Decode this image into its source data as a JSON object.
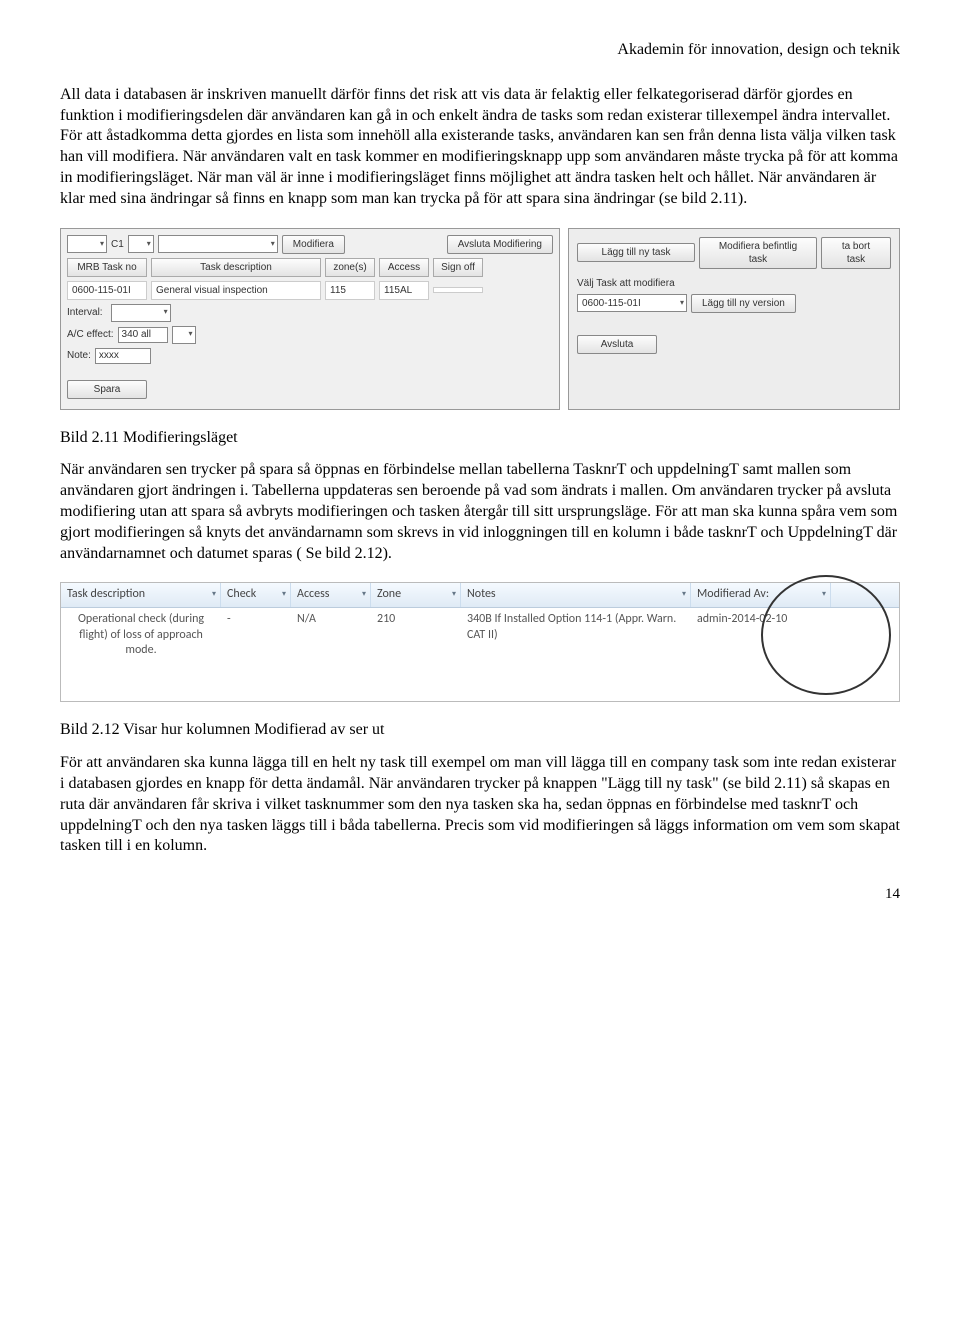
{
  "header": "Akademin för innovation, design och teknik",
  "para1": "All data i databasen är inskriven manuellt därför finns det risk att vis data är felaktig eller felkategoriserad därför gjordes en funktion i modifieringsdelen där användaren kan gå in och enkelt ändra de tasks som redan existerar tillexempel ändra intervallet. För att åstadkomma detta gjordes en lista som innehöll alla existerande tasks, användaren kan sen från denna lista välja vilken task han vill modifiera. När användaren valt en task kommer en modifieringsknapp upp som användaren måste trycka på för att komma in modifieringsläget. När man väl är inne i modifieringsläget finns möjlighet att ändra tasken helt och hållet. När användaren är klar med sina ändringar så finns en knapp som  man kan  trycka på för att spara sina ändringar (se bild 2.11).",
  "fig1": {
    "c1": "C1",
    "modify": "Modifiera",
    "endModify": "Avsluta Modifiering",
    "headers": [
      "MRB Task no",
      "Task description",
      "zone(s)",
      "Access",
      "Sign off"
    ],
    "values": [
      "0600-115-01I",
      "General visual inspection",
      "115",
      "115AL",
      ""
    ],
    "interval": "Interval:",
    "ac": "A/C effect:",
    "acVal": "340 all",
    "note": "Note:",
    "noteVal": "xxxx",
    "save": "Spara",
    "addTask": "Lägg till ny task",
    "modExisting": "Modifiera befintlig task",
    "delete": "ta bort task",
    "chooseLabel": "Välj Task att modifiera",
    "ddVal": "0600-115-01I",
    "addVersion": "Lägg till ny version",
    "close": "Avsluta"
  },
  "caption1": "Bild 2.11 Modifieringsläget",
  "para2": "När användaren sen trycker på spara så öppnas en förbindelse mellan tabellerna TasknrT och uppdelningT samt  mallen som användaren gjort ändringen i. Tabellerna uppdateras sen beroende på vad som ändrats i mallen. Om användaren trycker på avsluta modifiering utan att spara så avbryts modifieringen och tasken återgår till sitt ursprungsläge. För att man ska kunna spåra vem som gjort modifieringen så knyts det användarnamn som skrevs in vid inloggningen till en kolumn i både tasknrT och UppdelningT där användarnamnet och datumet sparas ( Se bild 2.12).",
  "fig2": {
    "cols": [
      "Task description",
      "Check",
      "Access",
      "Zone",
      "Notes",
      "Modifierad Av:"
    ],
    "widths": [
      160,
      70,
      80,
      90,
      230,
      140
    ],
    "row": [
      "Operational check (during flight) of loss of approach mode.",
      "-",
      "N/A",
      "210",
      "340B If Installed Option 114-1 (Appr. Warn. CAT II)",
      "admin-2014-02-10"
    ]
  },
  "caption2": "Bild 2.12 Visar hur kolumnen Modifierad av ser ut",
  "para3": "För att användaren ska kunna lägga till en helt ny task till exempel om man vill lägga till en company task som inte redan existerar i databasen gjordes en knapp för detta ändamål. När användaren trycker på knappen \"Lägg till ny task\" (se bild 2.11) så skapas en ruta där användaren får  skriva i vilket tasknummer som den nya tasken ska ha, sedan öppnas en förbindelse med tasknrT och uppdelningT och den nya tasken läggs till i båda tabellerna. Precis som vid modifieringen så läggs information om vem som skapat tasken till i en kolumn.",
  "page": "14"
}
